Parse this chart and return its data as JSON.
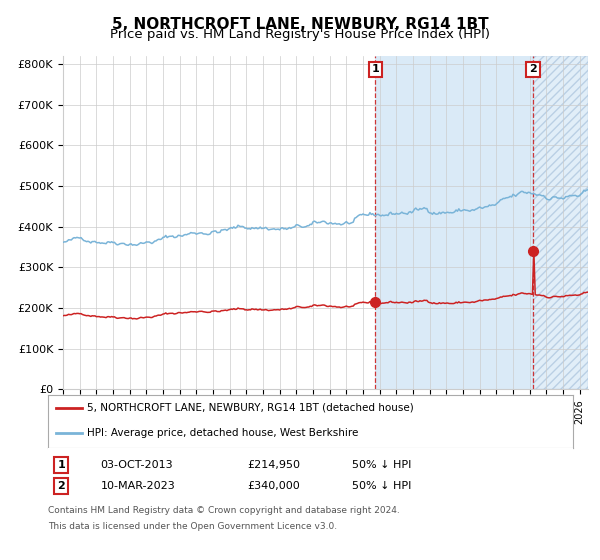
{
  "title": "5, NORTHCROFT LANE, NEWBURY, RG14 1BT",
  "subtitle": "Price paid vs. HM Land Registry's House Price Index (HPI)",
  "ylim": [
    0,
    820000
  ],
  "yticks": [
    0,
    100000,
    200000,
    300000,
    400000,
    500000,
    600000,
    700000,
    800000
  ],
  "ytick_labels": [
    "£0",
    "£100K",
    "£200K",
    "£300K",
    "£400K",
    "£500K",
    "£600K",
    "£700K",
    "£800K"
  ],
  "xlim_start": 1995.0,
  "xlim_end": 2026.5,
  "hpi_color": "#7ab4d8",
  "price_color": "#cc2222",
  "hpi_fill_color": "#daeaf7",
  "hatch_color": "#b0c8e0",
  "grid_color": "#cccccc",
  "bg_color": "#ffffff",
  "sale1_date": 2013.75,
  "sale1_price": 214950,
  "sale1_label": "1",
  "sale2_date": 2023.2,
  "sale2_price": 340000,
  "sale2_label": "2",
  "legend_entry1": "5, NORTHCROFT LANE, NEWBURY, RG14 1BT (detached house)",
  "legend_entry2": "HPI: Average price, detached house, West Berkshire",
  "footnote1": "Contains HM Land Registry data © Crown copyright and database right 2024.",
  "footnote2": "This data is licensed under the Open Government Licence v3.0.",
  "table_row1": [
    "1",
    "03-OCT-2013",
    "£214,950",
    "50% ↓ HPI"
  ],
  "table_row2": [
    "2",
    "10-MAR-2023",
    "£340,000",
    "50% ↓ HPI"
  ],
  "title_fontsize": 11,
  "subtitle_fontsize": 9.5
}
